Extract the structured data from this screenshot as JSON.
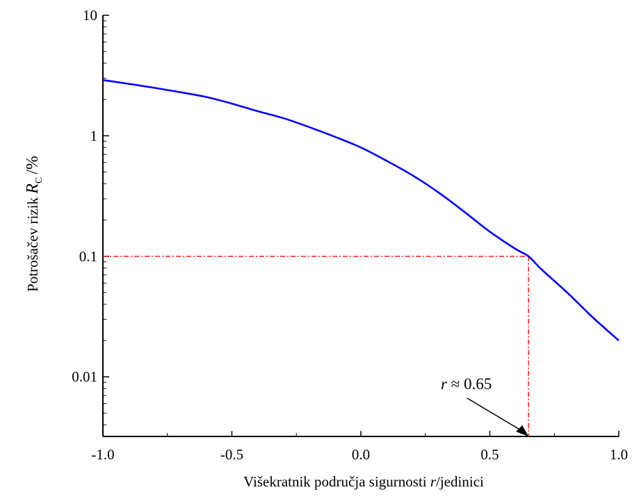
{
  "chart_data": {
    "type": "line",
    "title": "",
    "xlabel": "Višekratnik područja sigurnosti r/jedinici",
    "xlabel_parts": {
      "prefix": "Višekratnik područja sigurnosti ",
      "var": "r",
      "suffix": "/jedinici"
    },
    "ylabel": "Potrošačev rizik R_C /%",
    "ylabel_parts": {
      "prefix": "Potrošačev rizik ",
      "var": "R",
      "sub": "C",
      "suffix": "/%"
    },
    "xlim": [
      -1.0,
      1.0
    ],
    "ylim": [
      0.0032,
      10
    ],
    "yscale": "log",
    "x_ticks": [
      "-1.0",
      "-0.5",
      "0.0",
      "0.5",
      "1.0"
    ],
    "x_tick_values": [
      -1.0,
      -0.5,
      0.0,
      0.5,
      1.0
    ],
    "y_ticks": [
      "0.01",
      "0.1",
      "1",
      "10"
    ],
    "y_tick_values": [
      0.01,
      0.1,
      1,
      10
    ],
    "grid": false,
    "legend": "none",
    "series": [
      {
        "color": "#0000ff",
        "x": [
          -1.0,
          -0.9,
          -0.8,
          -0.7,
          -0.6,
          -0.5,
          -0.4,
          -0.3,
          -0.2,
          -0.1,
          0.0,
          0.1,
          0.2,
          0.3,
          0.4,
          0.5,
          0.6,
          0.65,
          0.7,
          0.8,
          0.9,
          1.0
        ],
        "y": [
          2.9,
          2.7,
          2.5,
          2.3,
          2.1,
          1.85,
          1.6,
          1.4,
          1.18,
          0.98,
          0.8,
          0.62,
          0.47,
          0.34,
          0.235,
          0.16,
          0.115,
          0.1,
          0.078,
          0.05,
          0.031,
          0.02
        ]
      }
    ],
    "reference_lines": {
      "x": 0.65,
      "y": 0.1,
      "color": "#ff0000"
    },
    "annotation": {
      "prefix": "r",
      "text": " ≈ 0.65",
      "x": 0.65
    }
  }
}
